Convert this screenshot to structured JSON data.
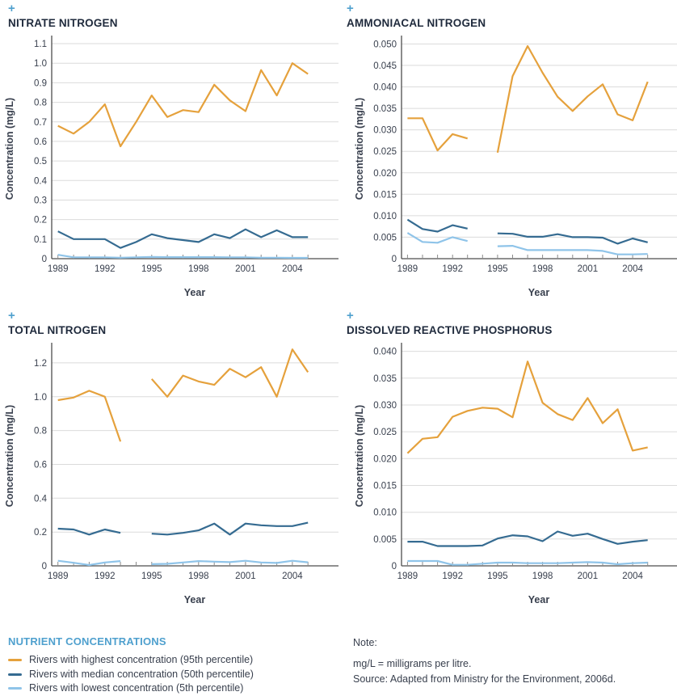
{
  "icons": {
    "expand_icon": "+"
  },
  "colors": {
    "highest_line": "#E5A13C",
    "median_line": "#356B91",
    "lowest_line": "#8FC4E9",
    "accent_blue": "#4FA0CE",
    "title_navy": "#1F2A3C",
    "body_text": "#39404E",
    "gridline": "#DBDBDB"
  },
  "chart_data": [
    {
      "type": "line",
      "title": "NITRATE NITROGEN",
      "xlabel": "Year",
      "ylabel": "Concentration (mg/L)",
      "grid": "horizontal",
      "legend_position": "none",
      "x": [
        1989,
        1990,
        1991,
        1992,
        1993,
        1994,
        1995,
        1996,
        1997,
        1998,
        1999,
        2000,
        2001,
        2002,
        2003,
        2004,
        2005
      ],
      "xlim": [
        1988.6,
        2006.9
      ],
      "ylim": [
        0,
        1.125
      ],
      "x_tick_label_years": [
        1989,
        1992,
        1995,
        1998,
        2001,
        2004
      ],
      "y_tick_values": [
        0,
        0.1,
        0.2,
        0.3,
        0.4,
        0.5,
        0.6,
        0.7,
        0.8,
        0.9,
        1.0,
        1.1
      ],
      "y_tick_labels": [
        "0",
        "0.1",
        "0.2",
        "0.3",
        "0.4",
        "0.5",
        "0.6",
        "0.7",
        "0.8",
        "0.9",
        "1.0",
        "1.1"
      ],
      "series": [
        {
          "name": "Rivers with highest concentration (95th percentile)",
          "color": "#E5A13C",
          "values": [
            0.68,
            0.64,
            0.7,
            0.79,
            0.575,
            0.7,
            0.835,
            0.725,
            0.76,
            0.75,
            0.89,
            0.81,
            0.755,
            0.965,
            0.835,
            1.0,
            0.945
          ]
        },
        {
          "name": "Rivers with median concentration (50th percentile)",
          "color": "#356B91",
          "values": [
            0.14,
            0.1,
            0.1,
            0.1,
            0.055,
            0.085,
            0.125,
            0.105,
            0.095,
            0.085,
            0.125,
            0.105,
            0.15,
            0.11,
            0.145,
            0.11,
            0.11
          ]
        },
        {
          "name": "Rivers with lowest concentration (5th percentile)",
          "color": "#8FC4E9",
          "values": [
            0.02,
            0.007,
            0.007,
            0.007,
            0.005,
            0.007,
            0.009,
            0.008,
            0.008,
            0.008,
            0.008,
            0.007,
            0.007,
            0.005,
            0.005,
            0.004,
            0.004
          ]
        }
      ]
    },
    {
      "type": "line",
      "title": "AMMONIACAL NITROGEN",
      "xlabel": "Year",
      "ylabel": "Concentration (mg/L)",
      "grid": "horizontal",
      "legend_position": "none",
      "x": [
        1989,
        1990,
        1991,
        1992,
        1993,
        1994,
        1995,
        1996,
        1997,
        1998,
        1999,
        2000,
        2001,
        2002,
        2003,
        2004,
        2005
      ],
      "xlim": [
        1988.6,
        2006.9
      ],
      "ylim": [
        0,
        0.0512
      ],
      "x_tick_label_years": [
        1989,
        1992,
        1995,
        1998,
        2001,
        2004
      ],
      "y_tick_values": [
        0,
        0.005,
        0.01,
        0.015,
        0.02,
        0.025,
        0.03,
        0.035,
        0.04,
        0.045,
        0.05
      ],
      "y_tick_labels": [
        "0",
        "0.005",
        "0.010",
        "0.015",
        "0.020",
        "0.025",
        "0.030",
        "0.035",
        "0.040",
        "0.045",
        "0.050"
      ],
      "series": [
        {
          "name": "Rivers with highest concentration (95th percentile)",
          "color": "#E5A13C",
          "values": [
            0.0327,
            0.0327,
            0.0252,
            0.029,
            0.028,
            null,
            0.0247,
            0.0425,
            0.0495,
            0.0433,
            0.0377,
            0.0344,
            0.0378,
            0.0406,
            0.0336,
            0.0322,
            0.0412
          ]
        },
        {
          "name": "Rivers with median concentration (50th percentile)",
          "color": "#356B91",
          "values": [
            0.0091,
            0.0069,
            0.0063,
            0.0078,
            0.007,
            null,
            0.0059,
            0.0058,
            0.0051,
            0.0051,
            0.0057,
            0.005,
            0.005,
            0.0049,
            0.0035,
            0.0047,
            0.0038
          ]
        },
        {
          "name": "Rivers with lowest concentration (5th percentile)",
          "color": "#8FC4E9",
          "values": [
            0.006,
            0.0039,
            0.0037,
            0.005,
            0.0041,
            null,
            0.0029,
            0.003,
            0.002,
            0.002,
            0.002,
            0.002,
            0.002,
            0.0018,
            0.001,
            0.001,
            0.0011
          ]
        }
      ]
    },
    {
      "type": "line",
      "title": "TOTAL NITROGEN",
      "xlabel": "Year",
      "ylabel": "Concentration (mg/L)",
      "grid": "horizontal",
      "legend_position": "none",
      "x": [
        1989,
        1990,
        1991,
        1992,
        1993,
        1994,
        1995,
        1996,
        1997,
        1998,
        1999,
        2000,
        2001,
        2002,
        2003,
        2004,
        2005
      ],
      "xlim": [
        1988.6,
        2006.9
      ],
      "ylim": [
        0,
        1.3
      ],
      "x_tick_label_years": [
        1989,
        1992,
        1995,
        1998,
        2001,
        2004
      ],
      "y_tick_values": [
        0,
        0.2,
        0.4,
        0.6,
        0.8,
        1.0,
        1.2
      ],
      "y_tick_labels": [
        "0",
        "0.2",
        "0.4",
        "0.6",
        "0.8",
        "1.0",
        "1.2"
      ],
      "series": [
        {
          "name": "Rivers with highest concentration (95th percentile)",
          "color": "#E5A13C",
          "values": [
            0.98,
            0.995,
            1.035,
            1.0,
            0.735,
            null,
            1.105,
            1.0,
            1.125,
            1.09,
            1.07,
            1.165,
            1.115,
            1.175,
            1.0,
            1.28,
            1.145
          ]
        },
        {
          "name": "Rivers with median concentration (50th percentile)",
          "color": "#356B91",
          "values": [
            0.22,
            0.215,
            0.185,
            0.215,
            0.195,
            null,
            0.19,
            0.185,
            0.195,
            0.21,
            0.25,
            0.185,
            0.25,
            0.24,
            0.235,
            0.235,
            0.255
          ]
        },
        {
          "name": "Rivers with lowest concentration (5th percentile)",
          "color": "#8FC4E9",
          "values": [
            0.03,
            0.018,
            0.005,
            0.02,
            0.028,
            null,
            0.01,
            0.012,
            0.02,
            0.028,
            0.025,
            0.022,
            0.03,
            0.02,
            0.017,
            0.03,
            0.021
          ]
        }
      ]
    },
    {
      "type": "line",
      "title": "DISSOLVED REACTIVE PHOSPHORUS",
      "xlabel": "Year",
      "ylabel": "Concentration (mg/L)",
      "grid": "horizontal",
      "legend_position": "none",
      "x": [
        1989,
        1990,
        1991,
        1992,
        1993,
        1994,
        1995,
        1996,
        1997,
        1998,
        1999,
        2000,
        2001,
        2002,
        2003,
        2004,
        2005
      ],
      "xlim": [
        1988.6,
        2006.9
      ],
      "ylim": [
        0,
        0.041
      ],
      "x_tick_label_years": [
        1989,
        1992,
        1995,
        1998,
        2001,
        2004
      ],
      "y_tick_values": [
        0,
        0.005,
        0.01,
        0.015,
        0.02,
        0.025,
        0.03,
        0.035,
        0.04
      ],
      "y_tick_labels": [
        "0",
        "0.005",
        "0.010",
        "0.015",
        "0.020",
        "0.025",
        "0.030",
        "0.035",
        "0.040"
      ],
      "series": [
        {
          "name": "Rivers with highest concentration (95th percentile)",
          "color": "#E5A13C",
          "values": [
            0.021,
            0.0237,
            0.024,
            0.0278,
            0.0289,
            0.0295,
            0.0293,
            0.0277,
            0.0381,
            0.0304,
            0.0283,
            0.0272,
            0.0313,
            0.0266,
            0.0292,
            0.0215,
            0.0221
          ]
        },
        {
          "name": "Rivers with median concentration (50th percentile)",
          "color": "#356B91",
          "values": [
            0.0045,
            0.0045,
            0.0037,
            0.0037,
            0.0037,
            0.0038,
            0.0051,
            0.0057,
            0.0055,
            0.0046,
            0.0064,
            0.0056,
            0.006,
            0.005,
            0.0041,
            0.0045,
            0.0048
          ]
        },
        {
          "name": "Rivers with lowest concentration (5th percentile)",
          "color": "#8FC4E9",
          "values": [
            0.0009,
            0.0009,
            0.0009,
            0.0002,
            0.0002,
            0.0004,
            0.0006,
            0.0006,
            0.0005,
            0.0005,
            0.0005,
            0.0006,
            0.0007,
            0.0006,
            0.0003,
            0.0005,
            0.0006
          ]
        }
      ]
    }
  ],
  "legend": {
    "title": "NUTRIENT CONCENTRATIONS",
    "items": [
      {
        "label": "Rivers with highest concentration (95th percentile)",
        "color": "#E5A13C"
      },
      {
        "label": "Rivers with median concentration (50th percentile)",
        "color": "#356B91"
      },
      {
        "label": "Rivers with lowest concentration (5th percentile)",
        "color": "#8FC4E9"
      }
    ]
  },
  "note": {
    "label": "Note:",
    "lines": [
      "mg/L = milligrams per litre.",
      "Source: Adapted from Ministry for the Environment, 2006d."
    ]
  }
}
